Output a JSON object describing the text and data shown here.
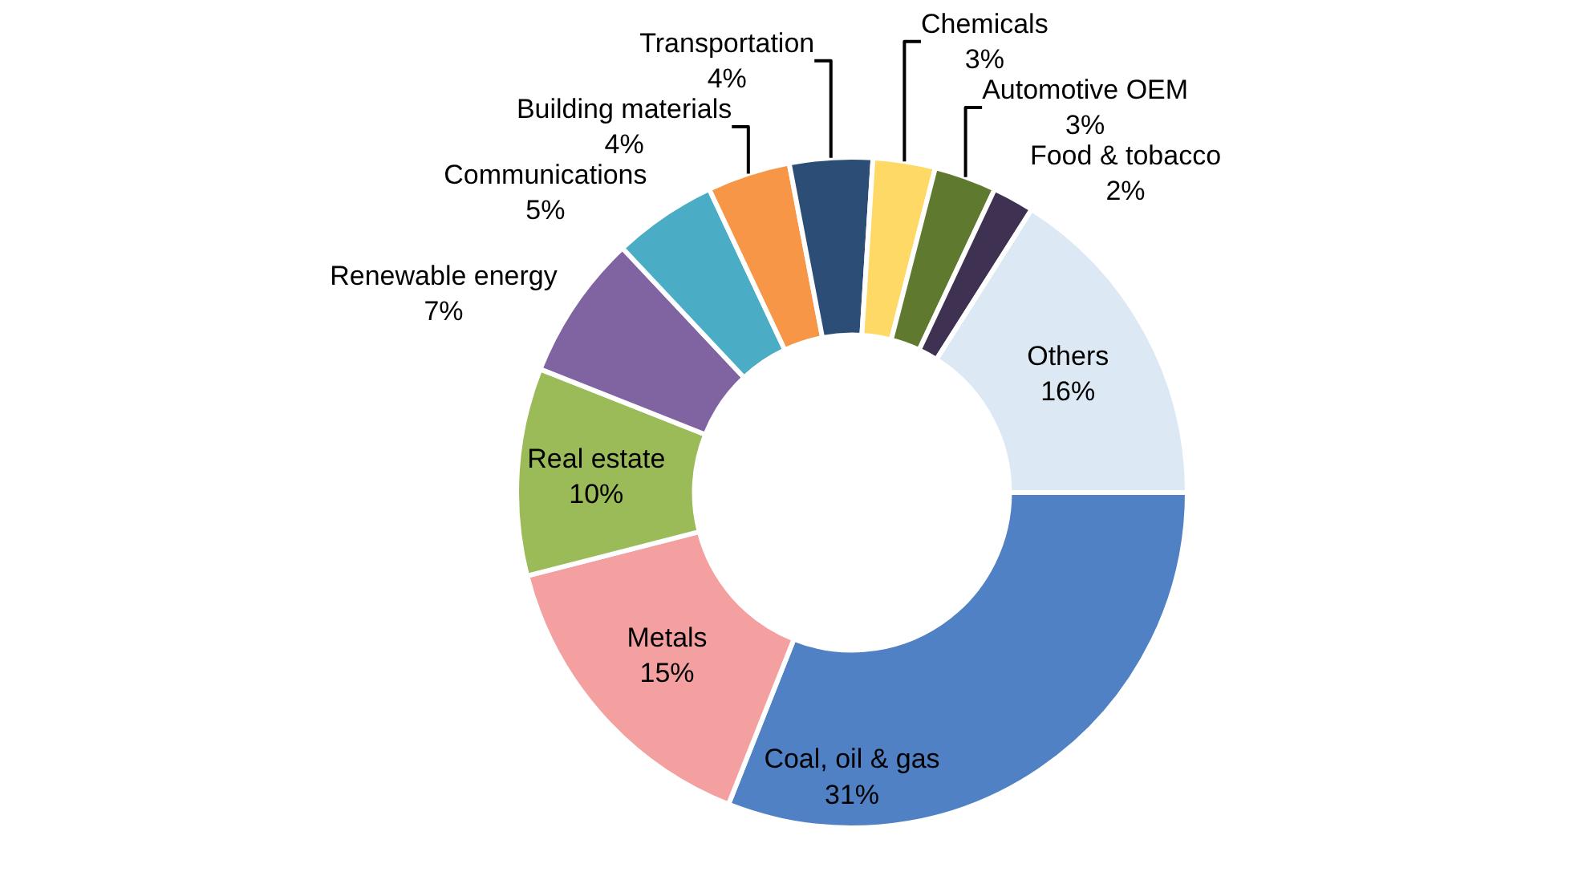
{
  "chart_data": {
    "type": "donut",
    "categories": [
      "Coal, oil & gas",
      "Metals",
      "Real estate",
      "Renewable energy",
      "Communications",
      "Building materials",
      "Transportation",
      "Chemicals",
      "Automotive OEM",
      "Food & tobacco",
      "Others"
    ],
    "values": [
      31,
      15,
      10,
      7,
      5,
      4,
      4,
      3,
      3,
      2,
      16
    ],
    "value_labels": [
      "31%",
      "15%",
      "10%",
      "7%",
      "5%",
      "4%",
      "4%",
      "3%",
      "3%",
      "2%",
      "16%"
    ],
    "colors": [
      "#4f81c4",
      "#f4a0a0",
      "#9bbb59",
      "#8064a2",
      "#4bacc6",
      "#f79646",
      "#2c4d75",
      "#ffd966",
      "#5f7a2f",
      "#3f3151",
      "#dce9f5"
    ],
    "legend": false
  }
}
